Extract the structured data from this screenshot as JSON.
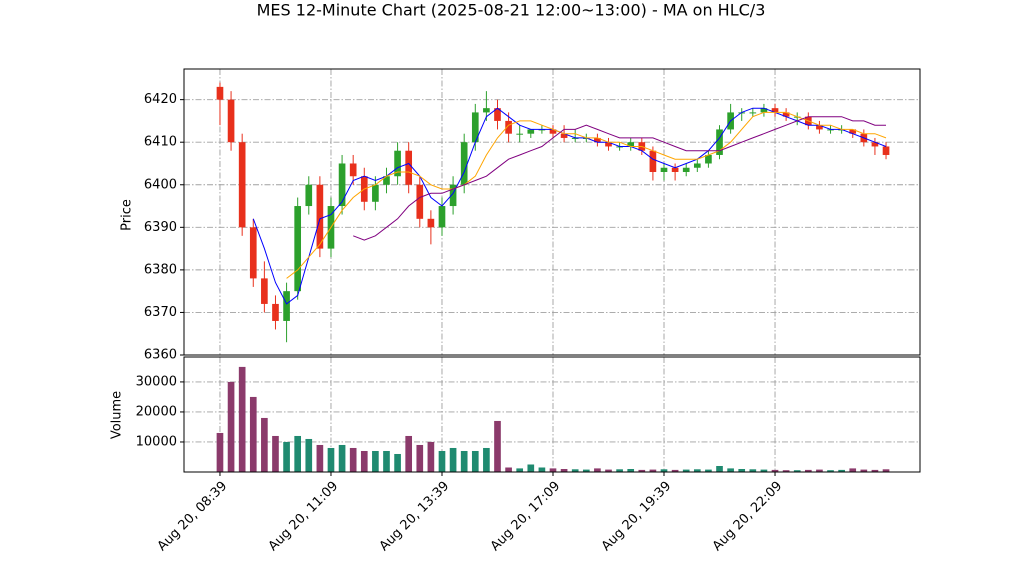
{
  "chart_data": {
    "type": "candlestick",
    "title": "MES 12-Minute Chart (2025-08-21 12:00~13:00) - MA on HLC/3",
    "ylabel": "Price",
    "volume_ylabel": "Volume",
    "grid": true,
    "up_color": "#2ca02c",
    "down_color": "#e8301c",
    "up_volume_color": "#1f8a70",
    "down_volume_color": "#8b3a6b",
    "xlim": [
      -3.24,
      63.06
    ],
    "xticks": [
      {
        "value": 0,
        "label": "Aug 20, 08:39"
      },
      {
        "value": 10,
        "label": "Aug 20, 11:09"
      },
      {
        "value": 20,
        "label": "Aug 20, 13:39"
      },
      {
        "value": 30,
        "label": "Aug 20, 17:09"
      },
      {
        "value": 40,
        "label": "Aug 20, 19:39"
      },
      {
        "value": 50,
        "label": "Aug 20, 22:09"
      }
    ],
    "ylim": [
      6360,
      6427.2
    ],
    "yticks": [
      6360,
      6370,
      6380,
      6390,
      6400,
      6410,
      6420
    ],
    "volume_ylim": [
      0,
      38300
    ],
    "volume_yticks": [
      10000,
      20000,
      30000
    ],
    "open": [
      6423,
      6420,
      6410,
      6390,
      6378,
      6372,
      6368,
      6375,
      6395,
      6400,
      6385,
      6395,
      6405,
      6402,
      6396,
      6400,
      6402,
      6408,
      6400,
      6392,
      6390,
      6395,
      6400,
      6410,
      6417,
      6418,
      6415,
      6412,
      6412,
      6413,
      6413,
      6412,
      6411,
      6411,
      6411,
      6410,
      6409,
      6409,
      6410,
      6408,
      6403,
      6404,
      6403,
      6404,
      6405,
      6407,
      6413,
      6417,
      6417,
      6417,
      6418,
      6417,
      6416,
      6416,
      6414,
      6413,
      6413,
      6413,
      6412,
      6410,
      6409
    ],
    "high": [
      6424,
      6422,
      6412,
      6392,
      6382,
      6374,
      6377,
      6397,
      6402,
      6402,
      6397,
      6407,
      6407,
      6404,
      6402,
      6404,
      6410,
      6410,
      6402,
      6394,
      6397,
      6402,
      6412,
      6419,
      6422,
      6420,
      6417,
      6414,
      6413,
      6414,
      6414,
      6414,
      6413,
      6412,
      6412,
      6411,
      6410,
      6411,
      6411,
      6409,
      6405,
      6405,
      6405,
      6406,
      6408,
      6414,
      6419,
      6418,
      6418,
      6419,
      6419,
      6418,
      6417,
      6417,
      6415,
      6414,
      6414,
      6413,
      6413,
      6411,
      6410
    ],
    "low": [
      6414,
      6408,
      6388,
      6376,
      6370,
      6366,
      6363,
      6373,
      6393,
      6383,
      6383,
      6393,
      6400,
      6394,
      6394,
      6398,
      6400,
      6398,
      6390,
      6386,
      6388,
      6393,
      6398,
      6408,
      6415,
      6413,
      6410,
      6410,
      6411,
      6412,
      6411,
      6410,
      6410,
      6410,
      6409,
      6408,
      6408,
      6408,
      6407,
      6401,
      6401,
      6401,
      6402,
      6403,
      6404,
      6406,
      6412,
      6415,
      6416,
      6416,
      6416,
      6415,
      6414,
      6413,
      6412,
      6412,
      6412,
      6411,
      6409,
      6407,
      6406
    ],
    "close": [
      6420,
      6410,
      6390,
      6378,
      6372,
      6368,
      6375,
      6395,
      6400,
      6385,
      6395,
      6405,
      6402,
      6396,
      6400,
      6402,
      6408,
      6400,
      6392,
      6390,
      6395,
      6400,
      6410,
      6417,
      6418,
      6415,
      6412,
      6412,
      6413,
      6413,
      6412,
      6411,
      6411,
      6411,
      6410,
      6409,
      6409,
      6410,
      6408,
      6403,
      6404,
      6403,
      6404,
      6405,
      6407,
      6413,
      6417,
      6417,
      6417,
      6418,
      6417,
      6416,
      6416,
      6414,
      6413,
      6413,
      6413,
      6412,
      6410,
      6409,
      6407
    ],
    "volume": [
      13000,
      30000,
      35000,
      25000,
      18000,
      12000,
      10000,
      12000,
      11000,
      9000,
      8000,
      9000,
      8000,
      7000,
      7000,
      7000,
      6000,
      12000,
      9000,
      10000,
      7000,
      8000,
      7000,
      7000,
      8000,
      17000,
      1500,
      1200,
      2500,
      1500,
      1200,
      1000,
      900,
      800,
      1200,
      800,
      900,
      1000,
      700,
      800,
      900,
      700,
      800,
      900,
      800,
      2000,
      1200,
      1000,
      900,
      800,
      700,
      600,
      600,
      700,
      800,
      600,
      700,
      1200,
      800,
      700,
      900
    ],
    "moving_averages": [
      {
        "color": "#0000ff",
        "values": [
          null,
          null,
          null,
          6392,
          6385,
          6377,
          6372,
          6374,
          6383,
          6392,
          6393,
          6396,
          6401,
          6402,
          6401,
          6402,
          6404,
          6405,
          6402,
          6397,
          6395,
          6398,
          6403,
          6410,
          6416,
          6418,
          6416,
          6414,
          6413,
          6413,
          6413,
          6412,
          6411,
          6411,
          6410,
          6410,
          6409,
          6409,
          6408,
          6406,
          6405,
          6404,
          6405,
          6406,
          6408,
          6411,
          6415,
          6417,
          6418,
          6418,
          6417,
          6416,
          6415,
          6414,
          6414,
          6413,
          6413,
          6412,
          6411,
          6410,
          6409
        ]
      },
      {
        "color": "#ffa500",
        "values": [
          null,
          null,
          null,
          null,
          null,
          null,
          6378,
          6380,
          6383,
          6386,
          6390,
          6394,
          6397,
          6399,
          6400,
          6402,
          6403,
          6403,
          6402,
          6400,
          6399,
          6399,
          6400,
          6402,
          6407,
          6411,
          6414,
          6415,
          6415,
          6414,
          6413,
          6412,
          6412,
          6411,
          6411,
          6410,
          6410,
          6409,
          6409,
          6408,
          6407,
          6406,
          6406,
          6406,
          6407,
          6408,
          6410,
          6413,
          6416,
          6417,
          6417,
          6417,
          6416,
          6415,
          6414,
          6414,
          6413,
          6413,
          6412,
          6412,
          6411
        ]
      },
      {
        "color": "#800080",
        "values": [
          null,
          null,
          null,
          null,
          null,
          null,
          null,
          null,
          null,
          null,
          null,
          null,
          6388,
          6387,
          6388,
          6390,
          6392,
          6395,
          6397,
          6398,
          6398,
          6399,
          6400,
          6401,
          6402,
          6404,
          6406,
          6407,
          6408,
          6409,
          6411,
          6413,
          6413,
          6414,
          6413,
          6412,
          6411,
          6411,
          6411,
          6411,
          6410,
          6409,
          6408,
          6408,
          6408,
          6408,
          6409,
          6410,
          6411,
          6412,
          6413,
          6414,
          6415,
          6416,
          6416,
          6416,
          6416,
          6415,
          6415,
          6414,
          6414
        ]
      }
    ]
  }
}
